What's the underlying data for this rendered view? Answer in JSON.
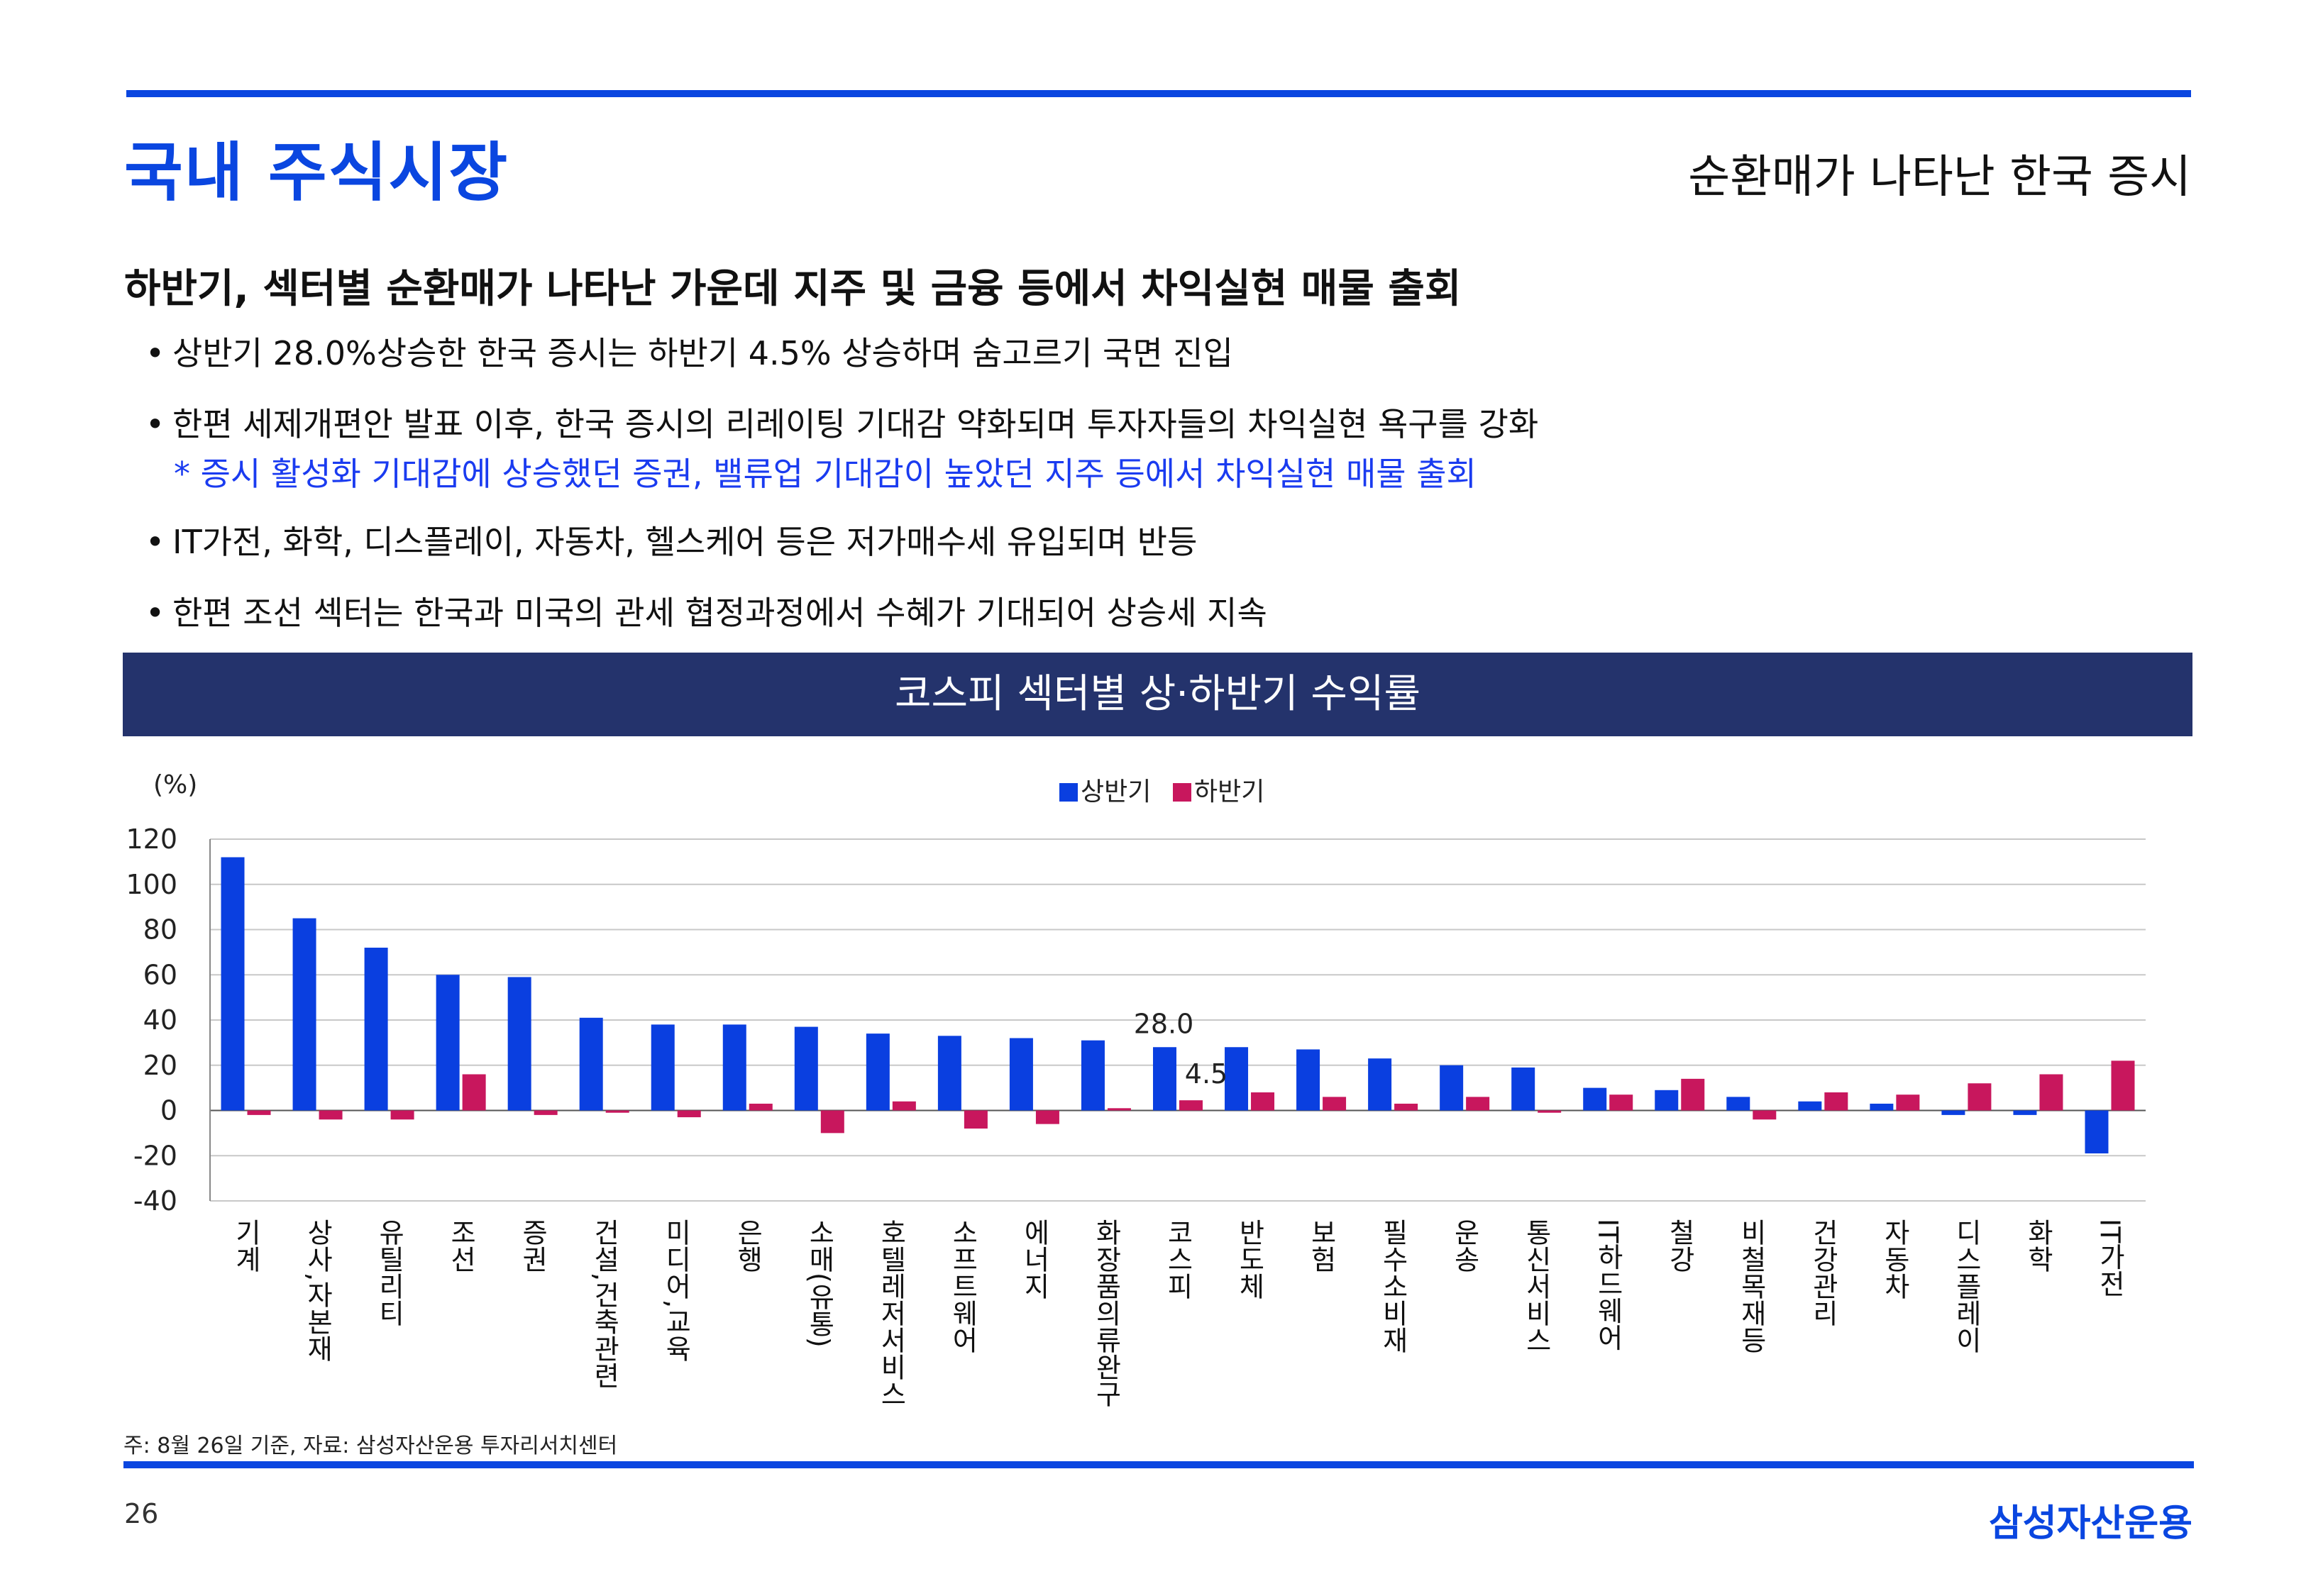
{
  "header": {
    "section_title": "국내 주식시장",
    "page_subtitle": "순환매가 나타난 한국 증시"
  },
  "headline": "하반기, 섹터별 순환매가 나타난 가운데 지주 및 금융 등에서 차익실현 매물 출회",
  "bullets": [
    "상반기 28.0%상승한 한국 증시는 하반기 4.5% 상승하며 숨고르기 국면 진입",
    "한편 세제개편안 발표 이후, 한국 증시의 리레이팅 기대감 약화되며 투자자들의 차익실현 욕구를 강화",
    "IT가전, 화학, 디스플레이, 자동차, 헬스케어 등은 저가매수세 유입되며 반등",
    "한편 조선 섹터는 한국과 미국의 관세 협정과정에서 수혜가 기대되어 상승세 지속"
  ],
  "bullet_note": "* 증시 활성화 기대감에 상승했던 증권, 밸류업 기대감이 높았던 지주 등에서 차익실현 매물 출회",
  "chart_title": "코스피 섹터별 상·하반기 수익률",
  "chart_data": {
    "type": "bar",
    "title": "코스피 섹터별 상·하반기 수익률",
    "ylabel": "(%)",
    "xlabel": "",
    "ylim": [
      -40,
      120
    ],
    "yticks": [
      -40,
      -20,
      0,
      20,
      40,
      60,
      80,
      100,
      120
    ],
    "grid": true,
    "legend": "top-center",
    "categories": [
      "기계",
      "상사,자본재",
      "유틸리티",
      "조선",
      "증권",
      "건설,건축관련",
      "미디어,교육",
      "은행",
      "소매(유통)",
      "호텔레저서비스",
      "소프트웨어",
      "에너지",
      "화장품의류완구",
      "코스피",
      "반도체",
      "보험",
      "필수소비재",
      "운송",
      "통신서비스",
      "IT하드웨어",
      "철강",
      "비철목재등",
      "건강관리",
      "자동차",
      "디스플레이",
      "화학",
      "IT가전"
    ],
    "series": [
      {
        "name": "상반기",
        "color": "#0a3fe0",
        "values": [
          112,
          85,
          72,
          60,
          59,
          41,
          38,
          38,
          37,
          34,
          33,
          32,
          31,
          28.0,
          28,
          27,
          23,
          20,
          19,
          10,
          9,
          6,
          4,
          3,
          -2,
          -2,
          -19
        ]
      },
      {
        "name": "하반기",
        "color": "#c8175d",
        "values": [
          -2,
          -4,
          -4,
          16,
          -2,
          -1,
          -3,
          3,
          -10,
          4,
          -8,
          -6,
          1,
          4.5,
          8,
          6,
          3,
          6,
          -1,
          7,
          14,
          -4,
          8,
          7,
          12,
          16,
          22
        ]
      }
    ],
    "annotations": [
      "28.0",
      "4.5"
    ]
  },
  "footnote": "주: 8월 26일 기준, 자료: 삼성자산운용 투자리서치센터",
  "page_number": "26",
  "brand": "삼성자산운용"
}
